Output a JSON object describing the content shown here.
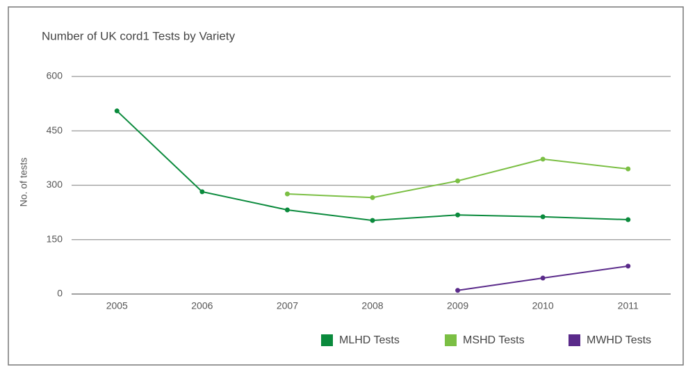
{
  "chart_data": {
    "type": "line",
    "title": "Number of UK cord1 Tests by Variety",
    "y_label": "No. of tests",
    "categories": [
      "2005",
      "2006",
      "2007",
      "2008",
      "2009",
      "2010",
      "2011"
    ],
    "series": [
      {
        "name": "MLHD Tests",
        "color": "#0a8a3c",
        "values": [
          505,
          282,
          232,
          203,
          218,
          213,
          205
        ]
      },
      {
        "name": "MSHD Tests",
        "color": "#7bbf44",
        "values": [
          null,
          null,
          276,
          266,
          312,
          372,
          345
        ]
      },
      {
        "name": "MWHD Tests",
        "color": "#5a2a8a",
        "values": [
          null,
          null,
          null,
          null,
          10,
          44,
          77
        ]
      }
    ],
    "ylim": [
      0,
      600
    ],
    "yticks": [
      0,
      150,
      300,
      450,
      600
    ],
    "grid": true
  }
}
